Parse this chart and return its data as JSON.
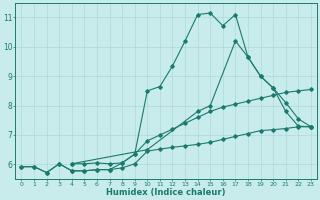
{
  "xlabel": "Humidex (Indice chaleur)",
  "bg_color": "#c8ecec",
  "line_color": "#1a7a6e",
  "grid_color": "#b0d8d8",
  "xlim": [
    -0.5,
    23.5
  ],
  "ylim": [
    5.5,
    11.5
  ],
  "xticks": [
    0,
    1,
    2,
    3,
    4,
    5,
    6,
    7,
    8,
    9,
    10,
    11,
    12,
    13,
    14,
    15,
    16,
    17,
    18,
    19,
    20,
    21,
    22,
    23
  ],
  "yticks": [
    6,
    7,
    8,
    9,
    10,
    11
  ],
  "line1_x": [
    0,
    1,
    2,
    3,
    4,
    5,
    6,
    7,
    8,
    9,
    10,
    11,
    12,
    13,
    14,
    15,
    16,
    17,
    18,
    19,
    20,
    21,
    22,
    23
  ],
  "line1_y": [
    5.92,
    5.92,
    5.72,
    6.02,
    5.78,
    5.78,
    5.82,
    5.82,
    5.88,
    6.02,
    6.45,
    6.52,
    6.58,
    6.63,
    6.68,
    6.75,
    6.85,
    6.95,
    7.05,
    7.15,
    7.18,
    7.22,
    7.28,
    7.28
  ],
  "line2_x": [
    0,
    1,
    2,
    3,
    4,
    5,
    6,
    7,
    8,
    9,
    10,
    11,
    12,
    13,
    14,
    15,
    16,
    17,
    18,
    19,
    20,
    21,
    22,
    23
  ],
  "line2_y": [
    5.92,
    5.92,
    5.72,
    6.02,
    5.78,
    5.78,
    5.82,
    5.82,
    6.05,
    6.35,
    8.5,
    8.65,
    9.35,
    10.2,
    11.1,
    11.15,
    10.72,
    11.1,
    9.65,
    9.0,
    8.6,
    7.8,
    7.3,
    7.28
  ],
  "line3_x": [
    4,
    5,
    6,
    7,
    8,
    9,
    10,
    11,
    12,
    13,
    14,
    15,
    16,
    17,
    18,
    19,
    20,
    21,
    22,
    23
  ],
  "line3_y": [
    6.02,
    6.02,
    6.05,
    6.02,
    6.05,
    6.35,
    6.8,
    7.0,
    7.2,
    7.4,
    7.6,
    7.8,
    7.95,
    8.05,
    8.15,
    8.25,
    8.35,
    8.45,
    8.5,
    8.55
  ],
  "line4_x": [
    4,
    10,
    14,
    15,
    17,
    18,
    19,
    20,
    21,
    22,
    23
  ],
  "line4_y": [
    6.02,
    6.5,
    7.8,
    8.0,
    10.2,
    9.65,
    9.0,
    8.6,
    8.1,
    7.55,
    7.28
  ]
}
